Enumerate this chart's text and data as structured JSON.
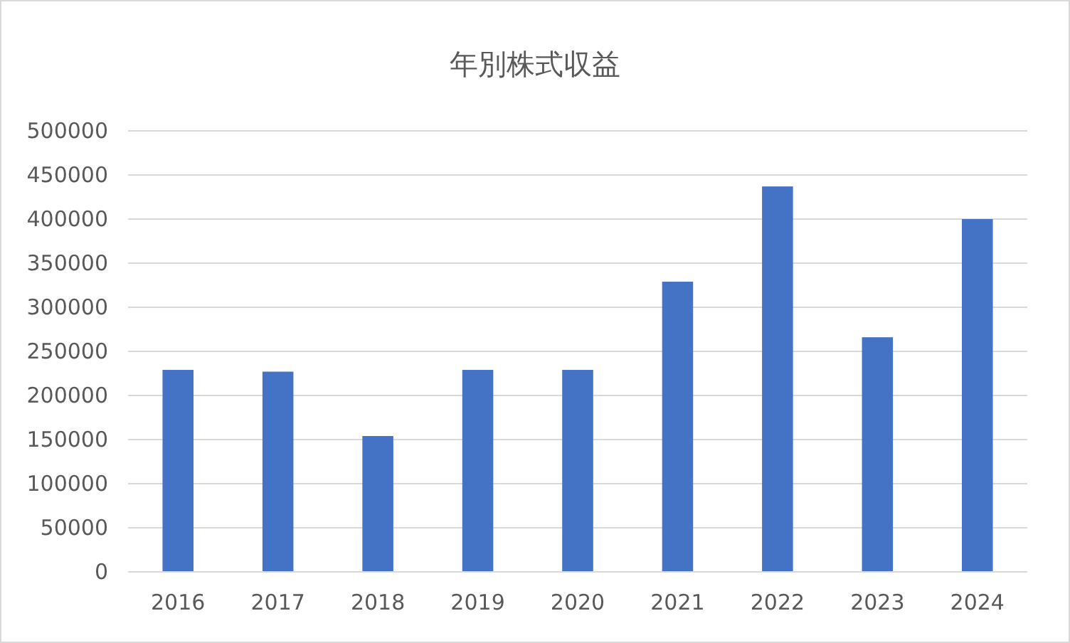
{
  "chart_data": {
    "type": "bar",
    "title": "年別株式収益",
    "categories": [
      "2016",
      "2017",
      "2018",
      "2019",
      "2020",
      "2021",
      "2022",
      "2023",
      "2024"
    ],
    "values": [
      229000,
      227000,
      154000,
      229000,
      229000,
      329000,
      437000,
      266000,
      400000
    ],
    "color": "#4472c4",
    "ylim": [
      0,
      500000
    ],
    "yticks": [
      0,
      50000,
      100000,
      150000,
      200000,
      250000,
      300000,
      350000,
      400000,
      450000,
      500000
    ],
    "grid": "y"
  }
}
